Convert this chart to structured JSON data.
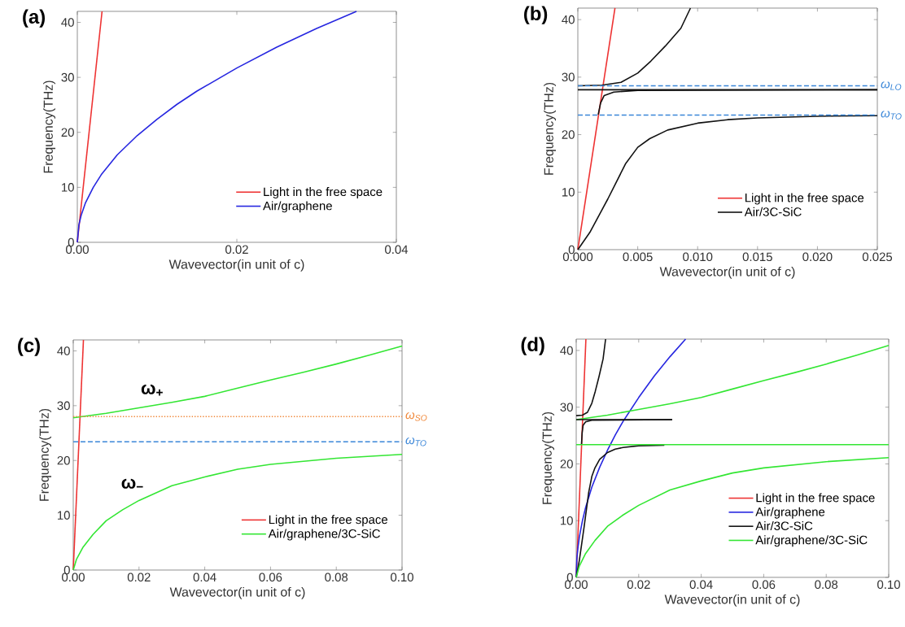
{
  "chart_data": [
    {
      "type": "line",
      "title": "(a)",
      "xlabel": "Wavevector(in unit of c)",
      "ylabel": "Frequency(THz)",
      "xlim": [
        0,
        0.04
      ],
      "ylim": [
        0,
        42
      ],
      "xticks": [
        {
          "value": 0,
          "label": "0.00"
        },
        {
          "value": 0.02,
          "label": "0.02"
        },
        {
          "value": 0.04,
          "label": "0.04"
        }
      ],
      "yticks": [
        0,
        10,
        20,
        30,
        40
      ],
      "legend": "bottom right",
      "series": [
        {
          "name": "Light in the free space",
          "color": "#ee3333",
          "x": [
            0,
            0.0031
          ],
          "values": [
            0,
            42
          ]
        },
        {
          "name": "Air/graphene",
          "color": "#2626e0",
          "x": [
            0,
            0.0002,
            0.0005,
            0.001,
            0.002,
            0.003,
            0.005,
            0.0075,
            0.01,
            0.0125,
            0.015,
            0.02,
            0.025,
            0.03,
            0.035
          ],
          "values": [
            0,
            3.2,
            5.0,
            7.1,
            10.0,
            12.3,
            15.9,
            19.4,
            22.4,
            25.1,
            27.5,
            31.7,
            35.5,
            38.9,
            42.0
          ]
        }
      ]
    },
    {
      "type": "line",
      "title": "(b)",
      "xlabel": "Wavevector(in unit of c)",
      "ylabel": "Frequency(THz)",
      "xlim": [
        0,
        0.025
      ],
      "ylim": [
        0,
        42
      ],
      "xticks": [
        {
          "value": 0,
          "label": "0.000"
        },
        {
          "value": 0.005,
          "label": "0.005"
        },
        {
          "value": 0.01,
          "label": "0.010"
        },
        {
          "value": 0.015,
          "label": "0.015"
        },
        {
          "value": 0.02,
          "label": "0.020"
        },
        {
          "value": 0.025,
          "label": "0.025"
        }
      ],
      "yticks": [
        0,
        10,
        20,
        30,
        40
      ],
      "legend": "bottom right",
      "ref_lines": [
        {
          "axis": "y",
          "value": 28.5,
          "label": "ω$_{LO}$",
          "color": "#3a86d8",
          "line_style": "dashed"
        },
        {
          "axis": "y",
          "value": 23.4,
          "label": "ω$_{TO}$",
          "color": "#3a86d8",
          "line_style": "dashed"
        }
      ],
      "series": [
        {
          "name": "Light in the free space",
          "color": "#ee3333",
          "x": [
            0,
            0.0031
          ],
          "values": [
            0,
            42
          ]
        },
        {
          "name": "Air/3C-SiC",
          "color": "#111111",
          "x": [
            0,
            0.001,
            0.0025,
            0.004,
            0.005,
            0.006,
            0.0075,
            0.01,
            0.0125,
            0.015,
            0.02,
            0.025
          ],
          "values": [
            0,
            3.0,
            8.8,
            15.0,
            17.8,
            19.3,
            20.8,
            22.0,
            22.6,
            22.9,
            23.2,
            23.3
          ]
        },
        {
          "color": "#111111",
          "x": [
            0.0017,
            0.0019,
            0.0022,
            0.003,
            0.005,
            0.025
          ],
          "values": [
            23.5,
            25.5,
            26.8,
            27.4,
            27.7,
            27.8
          ]
        },
        {
          "color": "#111111",
          "x": [
            0,
            0.025
          ],
          "values": [
            27.8,
            27.8
          ]
        },
        {
          "color": "#111111",
          "x": [
            0,
            0.002,
            0.0036,
            0.005,
            0.0061,
            0.0073,
            0.0086,
            0.0094
          ],
          "values": [
            28.5,
            28.6,
            29.1,
            30.7,
            32.8,
            35.4,
            38.5,
            42.0
          ]
        }
      ]
    },
    {
      "type": "line",
      "title": "(c)",
      "xlabel": "Wavevector(in unit of c)",
      "ylabel": "Frequency(THz)",
      "xlim": [
        0,
        0.1
      ],
      "ylim": [
        0,
        42
      ],
      "xticks": [
        {
          "value": 0,
          "label": "0.00"
        },
        {
          "value": 0.02,
          "label": "0.02"
        },
        {
          "value": 0.04,
          "label": "0.04"
        },
        {
          "value": 0.06,
          "label": "0.06"
        },
        {
          "value": 0.08,
          "label": "0.08"
        },
        {
          "value": 0.1,
          "label": "0.10"
        }
      ],
      "yticks": [
        0,
        10,
        20,
        30,
        40
      ],
      "legend": "bottom right",
      "ref_lines": [
        {
          "axis": "y",
          "value": 28.0,
          "label": "ω$_{SO}$",
          "color": "#f0883a",
          "line_style": "dotted"
        },
        {
          "axis": "y",
          "value": 23.4,
          "label": "ω$_{TO}$",
          "color": "#3a86d8",
          "line_style": "dashed"
        }
      ],
      "annotations": [
        "ω$_{+}$",
        "ω$_{−}$"
      ],
      "series": [
        {
          "name": "Light in the free space",
          "color": "#ee3333",
          "x": [
            0,
            0.0031
          ],
          "values": [
            0,
            42
          ]
        },
        {
          "name": "Air/graphene/3C-SiC",
          "color": "#33e633",
          "x": [
            0,
            0.01,
            0.02,
            0.03,
            0.04,
            0.05,
            0.06,
            0.07,
            0.08,
            0.09,
            0.1
          ],
          "values": [
            27.8,
            28.6,
            29.6,
            30.6,
            31.7,
            33.2,
            34.7,
            36.1,
            37.6,
            39.2,
            40.9
          ]
        },
        {
          "color": "#33e633",
          "x": [
            0,
            0.001,
            0.003,
            0.006,
            0.01,
            0.015,
            0.02,
            0.03,
            0.04,
            0.05,
            0.06,
            0.08,
            0.1
          ],
          "values": [
            0,
            2.0,
            4.2,
            6.5,
            9.0,
            11.0,
            12.7,
            15.4,
            17.0,
            18.4,
            19.3,
            20.4,
            21.1
          ]
        }
      ]
    },
    {
      "type": "line",
      "title": "(d)",
      "xlabel": "Wavevector(in unit of c)",
      "ylabel": "Frequency(THz)",
      "xlim": [
        0,
        0.1
      ],
      "ylim": [
        0,
        42
      ],
      "xticks": [
        {
          "value": 0,
          "label": "0.00"
        },
        {
          "value": 0.02,
          "label": "0.02"
        },
        {
          "value": 0.04,
          "label": "0.04"
        },
        {
          "value": 0.06,
          "label": "0.06"
        },
        {
          "value": 0.08,
          "label": "0.08"
        },
        {
          "value": 0.1,
          "label": "0.10"
        }
      ],
      "yticks": [
        0,
        10,
        20,
        30,
        40
      ],
      "legend": "bottom right",
      "series": [
        {
          "name": "Light in the free space",
          "color": "#ee3333",
          "x": [
            0,
            0.0031
          ],
          "values": [
            0,
            42
          ]
        },
        {
          "name": "Air/graphene",
          "color": "#2626e0",
          "x": [
            0,
            0.0002,
            0.0005,
            0.001,
            0.002,
            0.003,
            0.005,
            0.0075,
            0.01,
            0.0125,
            0.015,
            0.02,
            0.025,
            0.03,
            0.035
          ],
          "values": [
            0,
            3.2,
            5.0,
            7.1,
            10.0,
            12.3,
            15.9,
            19.4,
            22.4,
            25.1,
            27.5,
            31.7,
            35.5,
            38.9,
            42.0
          ]
        },
        {
          "name": "Air/3C-SiC",
          "color": "#111111",
          "x": [
            0,
            0.001,
            0.0025,
            0.004,
            0.005,
            0.006,
            0.0075,
            0.01,
            0.0125,
            0.015,
            0.02,
            0.0282
          ],
          "values": [
            0,
            3.0,
            8.8,
            15.0,
            17.8,
            19.3,
            20.8,
            22.0,
            22.6,
            22.9,
            23.2,
            23.3
          ]
        },
        {
          "name": "Air/graphene/3C-SiC",
          "color": "#33e633",
          "x": [
            0,
            0.01,
            0.02,
            0.03,
            0.04,
            0.05,
            0.06,
            0.07,
            0.08,
            0.09,
            0.1
          ],
          "values": [
            27.8,
            28.6,
            29.6,
            30.6,
            31.7,
            33.2,
            34.7,
            36.1,
            37.6,
            39.2,
            40.9
          ]
        },
        {
          "color": "#111111",
          "x": [
            0.0017,
            0.0019,
            0.0022,
            0.003,
            0.005,
            0.0307
          ],
          "values": [
            23.5,
            25.5,
            26.8,
            27.4,
            27.7,
            27.8
          ]
        },
        {
          "color": "#111111",
          "x": [
            0,
            0.0307
          ],
          "values": [
            27.8,
            27.8
          ]
        },
        {
          "color": "#111111",
          "x": [
            0,
            0.002,
            0.0036,
            0.005,
            0.0061,
            0.0073,
            0.0086,
            0.0094
          ],
          "values": [
            28.5,
            28.6,
            29.1,
            30.7,
            32.8,
            35.4,
            38.5,
            42.0
          ]
        },
        {
          "color": "#33e633",
          "x": [
            0,
            0.1
          ],
          "values": [
            23.4,
            23.4
          ]
        },
        {
          "color": "#33e633",
          "x": [
            0,
            0.001,
            0.003,
            0.006,
            0.01,
            0.015,
            0.02,
            0.03,
            0.04,
            0.05,
            0.06,
            0.08,
            0.1
          ],
          "values": [
            0,
            2.0,
            4.2,
            6.5,
            9.0,
            11.0,
            12.7,
            15.4,
            17.0,
            18.4,
            19.3,
            20.4,
            21.1
          ]
        }
      ]
    }
  ]
}
